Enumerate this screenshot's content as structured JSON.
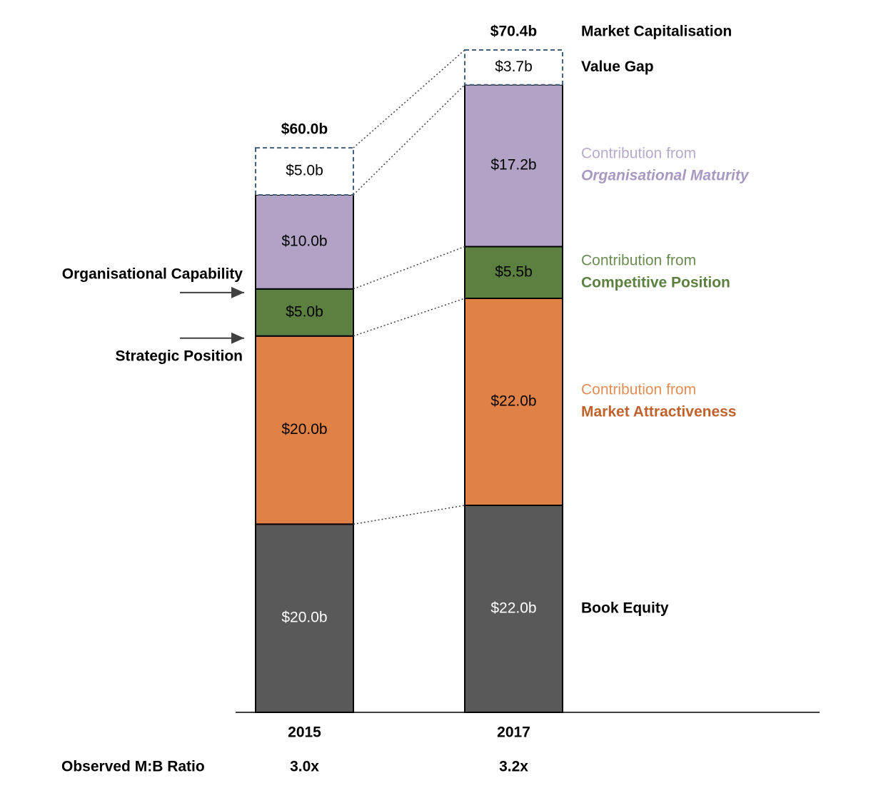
{
  "chart_data": {
    "type": "bar",
    "stacked": true,
    "categories": [
      "2015",
      "2017"
    ],
    "series": [
      {
        "name": "Book Equity",
        "color": "#595959",
        "label_color": "#ffffff",
        "values": [
          20,
          22
        ],
        "value_labels": [
          "$20.0b",
          "$22.0b"
        ]
      },
      {
        "name": "Market Attractiveness",
        "color": "#e08245",
        "label_color": "#000000",
        "legend_color": "#c0622b",
        "values": [
          20,
          22
        ],
        "value_labels": [
          "$20.0b",
          "$22.0b"
        ]
      },
      {
        "name": "Competitive Position",
        "color": "#5b8040",
        "label_color": "#000000",
        "legend_color": "#5b8040",
        "values": [
          5,
          5.5
        ],
        "value_labels": [
          "$5.0b",
          "$5.5b"
        ]
      },
      {
        "name": "Organisational Maturity",
        "color": "#b1a2c6",
        "label_color": "#000000",
        "legend_color": "#a898c2",
        "legend_italic": true,
        "values": [
          10,
          17.2
        ],
        "value_labels": [
          "$10.0b",
          "$17.2b"
        ]
      },
      {
        "name": "Value Gap",
        "color": "#ffffff",
        "outline": "dashed",
        "border_color": "#44607f",
        "label_color": "#000000",
        "values": [
          5,
          3.7
        ],
        "value_labels": [
          "$5.0b",
          "$3.7b"
        ]
      }
    ],
    "legend_prefix": "Contribution from",
    "totals": {
      "name": "Market Capitalisation",
      "values": [
        60,
        70.4
      ],
      "value_labels": [
        "$60.0b",
        "$70.4b"
      ]
    },
    "annotations": [
      "Organisational Capability",
      "Strategic Position"
    ],
    "ratio": {
      "label": "Observed M:B Ratio",
      "values": [
        3.0,
        3.2
      ],
      "value_labels": [
        "3.0x",
        "3.2x"
      ]
    }
  }
}
